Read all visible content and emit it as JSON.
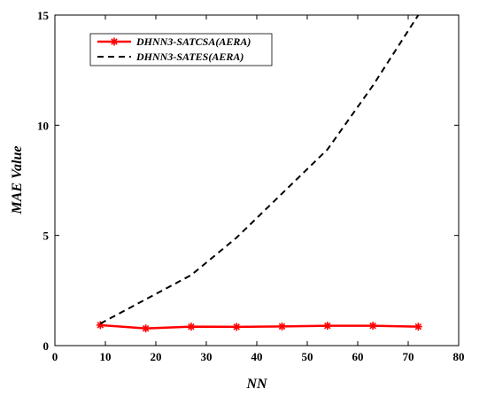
{
  "chart_data": {
    "type": "line",
    "xlabel": "NN",
    "ylabel": "MAE Value",
    "xlim": [
      0,
      80
    ],
    "ylim": [
      0,
      15
    ],
    "xticks": [
      0,
      10,
      20,
      30,
      40,
      50,
      60,
      70,
      80
    ],
    "yticks": [
      0,
      5,
      10,
      15
    ],
    "grid": false,
    "legend_position": "top-left",
    "series": [
      {
        "name": "DHNN3-SATCSA(AERA)",
        "color": "#ff0000",
        "style": "solid-star",
        "x": [
          9,
          18,
          27,
          36,
          45,
          54,
          63,
          72
        ],
        "y": [
          0.93,
          0.78,
          0.86,
          0.85,
          0.87,
          0.9,
          0.9,
          0.86
        ]
      },
      {
        "name": "DHNN3-SATES(AERA)",
        "color": "#000000",
        "style": "dashed",
        "x": [
          9,
          18,
          27,
          36,
          45,
          54,
          63,
          72
        ],
        "y": [
          1.0,
          2.1,
          3.2,
          4.9,
          6.9,
          8.9,
          11.8,
          15.0
        ]
      }
    ]
  }
}
